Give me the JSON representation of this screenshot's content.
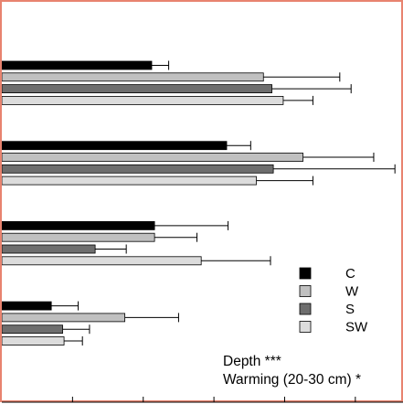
{
  "chart_data": {
    "type": "bar",
    "orientation": "horizontal",
    "series": [
      {
        "name": "C",
        "color": "#000000",
        "values": [
          1.06,
          1.59,
          1.08,
          0.35
        ],
        "errors": [
          0.12,
          0.17,
          0.52,
          0.19
        ]
      },
      {
        "name": "W",
        "color": "#c0c0c0",
        "values": [
          1.85,
          2.13,
          1.08,
          0.87
        ],
        "errors": [
          0.54,
          0.5,
          0.3,
          0.38
        ]
      },
      {
        "name": "S",
        "color": "#6e6e6e",
        "values": [
          1.91,
          1.92,
          0.66,
          0.43
        ],
        "errors": [
          0.56,
          0.86,
          0.22,
          0.19
        ]
      },
      {
        "name": "SW",
        "color": "#dcdcdc",
        "values": [
          1.99,
          1.8,
          1.41,
          0.44
        ],
        "errors": [
          0.21,
          0.4,
          0.49,
          0.13
        ]
      }
    ],
    "groups": 4,
    "xlim": [
      0,
      2.85
    ],
    "xticks": [
      0.5,
      1.0,
      1.5,
      2.0,
      2.5
    ],
    "legend": "right",
    "annotations": [
      "Depth ***",
      "Warming (20-30 cm) *"
    ],
    "grid": false
  }
}
